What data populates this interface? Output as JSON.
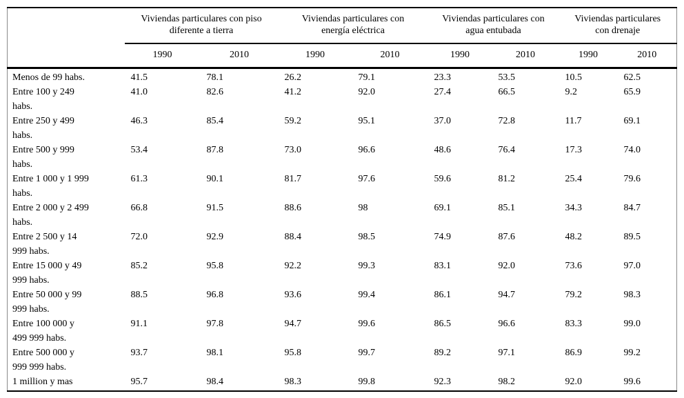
{
  "colors": {
    "background": "#ffffff",
    "rule": "#000000",
    "side_border": "#8a8a8a"
  },
  "table": {
    "stub_header": "",
    "groups": [
      {
        "label": "Viviendas particulares con piso\ndiferente a tierra",
        "years": [
          "1990",
          "2010"
        ]
      },
      {
        "label": "Viviendas particulares con\nenergía eléctrica",
        "years": [
          "1990",
          "2010"
        ]
      },
      {
        "label": "Viviendas particulares con\nagua entubada",
        "years": [
          "1990",
          "2010"
        ]
      },
      {
        "label": "Viviendas particulares\ncon drenaje",
        "years": [
          "1990",
          "2010"
        ]
      }
    ],
    "rows": [
      {
        "label": "Menos de 99 habs.",
        "values": [
          "41.5",
          "78.1",
          "26.2",
          "79.1",
          "23.3",
          "53.5",
          "10.5",
          "62.5"
        ]
      },
      {
        "label": "Entre 100 y 249\nhabs.",
        "values": [
          "41.0",
          "82.6",
          "41.2",
          "92.0",
          "27.4",
          "66.5",
          "9.2",
          "65.9"
        ]
      },
      {
        "label": "Entre 250 y 499\nhabs.",
        "values": [
          "46.3",
          "85.4",
          "59.2",
          "95.1",
          "37.0",
          "72.8",
          "11.7",
          "69.1"
        ]
      },
      {
        "label": "Entre 500 y 999\nhabs.",
        "values": [
          "53.4",
          "87.8",
          "73.0",
          "96.6",
          "48.6",
          "76.4",
          "17.3",
          "74.0"
        ]
      },
      {
        "label": "Entre 1 000 y 1 999\nhabs.",
        "values": [
          "61.3",
          "90.1",
          "81.7",
          "97.6",
          "59.6",
          "81.2",
          "25.4",
          "79.6"
        ]
      },
      {
        "label": "Entre 2 000 y 2 499\nhabs.",
        "values": [
          "66.8",
          "91.5",
          "88.6",
          "98",
          "69.1",
          "85.1",
          "34.3",
          "84.7"
        ]
      },
      {
        "label": "Entre 2 500 y 14\n999 habs.",
        "values": [
          "72.0",
          "92.9",
          "88.4",
          "98.5",
          "74.9",
          "87.6",
          "48.2",
          "89.5"
        ]
      },
      {
        "label": "Entre 15 000 y 49\n999 habs.",
        "values": [
          "85.2",
          "95.8",
          "92.2",
          "99.3",
          "83.1",
          "92.0",
          "73.6",
          "97.0"
        ]
      },
      {
        "label": "Entre 50 000 y 99\n999 habs.",
        "values": [
          "88.5",
          "96.8",
          "93.6",
          "99.4",
          "86.1",
          "94.7",
          "79.2",
          "98.3"
        ]
      },
      {
        "label": "Entre 100 000 y\n499 999 habs.",
        "values": [
          "91.1",
          "97.8",
          "94.7",
          "99.6",
          "86.5",
          "96.6",
          "83.3",
          "99.0"
        ]
      },
      {
        "label": "Entre 500 000 y\n999 999 habs.",
        "values": [
          "93.7",
          "98.1",
          "95.8",
          "99.7",
          "89.2",
          "97.1",
          "86.9",
          "99.2"
        ]
      },
      {
        "label": "1 million y mas",
        "values": [
          "95.7",
          "98.4",
          "98.3",
          "99.8",
          "92.3",
          "98.2",
          "92.0",
          "99.6"
        ]
      }
    ]
  }
}
